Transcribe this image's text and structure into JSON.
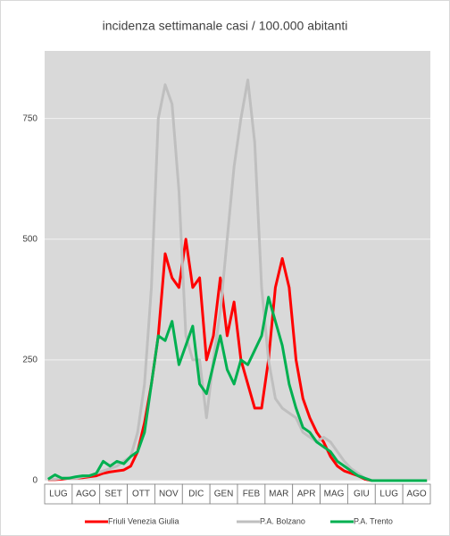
{
  "chart_data": {
    "type": "line",
    "title": "incidenza settimanale casi / 100.000 abitanti",
    "categories": [
      "LUG",
      null,
      null,
      null,
      "AGO",
      null,
      null,
      null,
      "SET",
      null,
      null,
      null,
      "OTT",
      null,
      null,
      null,
      "NOV",
      null,
      null,
      null,
      "DIC",
      null,
      null,
      null,
      "GEN",
      null,
      null,
      null,
      "FEB",
      null,
      null,
      null,
      "MAR",
      null,
      null,
      null,
      "APR",
      null,
      null,
      null,
      "MAG",
      null,
      null,
      null,
      "GIU",
      null,
      null,
      null,
      "LUG",
      null,
      null,
      null,
      "AGO",
      null,
      null,
      null
    ],
    "series": [
      {
        "name": "Friuli Venezia Giulia",
        "color": "#ff0000",
        "values": [
          2,
          2,
          3,
          5,
          5,
          6,
          8,
          10,
          15,
          18,
          20,
          22,
          30,
          60,
          120,
          200,
          300,
          470,
          420,
          400,
          500,
          400,
          420,
          250,
          300,
          420,
          300,
          370,
          250,
          200,
          150,
          150,
          250,
          400,
          460,
          400,
          250,
          170,
          130,
          100,
          80,
          50,
          30,
          20,
          15,
          10,
          3,
          0,
          0,
          0,
          0,
          0,
          0,
          0,
          0,
          0
        ]
      },
      {
        "name": "P.A. Bolzano",
        "color": "#bfbfbf",
        "values": [
          3,
          3,
          5,
          5,
          5,
          8,
          10,
          15,
          20,
          25,
          30,
          40,
          50,
          100,
          200,
          400,
          750,
          820,
          780,
          600,
          300,
          250,
          250,
          130,
          250,
          350,
          500,
          650,
          750,
          830,
          700,
          400,
          250,
          170,
          150,
          140,
          130,
          100,
          90,
          80,
          90,
          80,
          60,
          40,
          25,
          15,
          5,
          0,
          0,
          0,
          0,
          0,
          0,
          0,
          0,
          0
        ]
      },
      {
        "name": "P.A. Trento",
        "color": "#00b050",
        "values": [
          3,
          12,
          5,
          5,
          8,
          10,
          10,
          15,
          40,
          30,
          40,
          35,
          50,
          60,
          100,
          200,
          300,
          290,
          330,
          240,
          280,
          320,
          200,
          180,
          240,
          300,
          230,
          200,
          250,
          240,
          270,
          300,
          380,
          330,
          280,
          200,
          150,
          110,
          100,
          80,
          70,
          60,
          40,
          30,
          20,
          10,
          5,
          0,
          0,
          0,
          0,
          0,
          0,
          0,
          0,
          0
        ]
      }
    ],
    "ylim": [
      0,
      890
    ],
    "yticks": [
      0,
      250,
      500,
      750
    ],
    "grid": true,
    "legend": "bottom"
  }
}
